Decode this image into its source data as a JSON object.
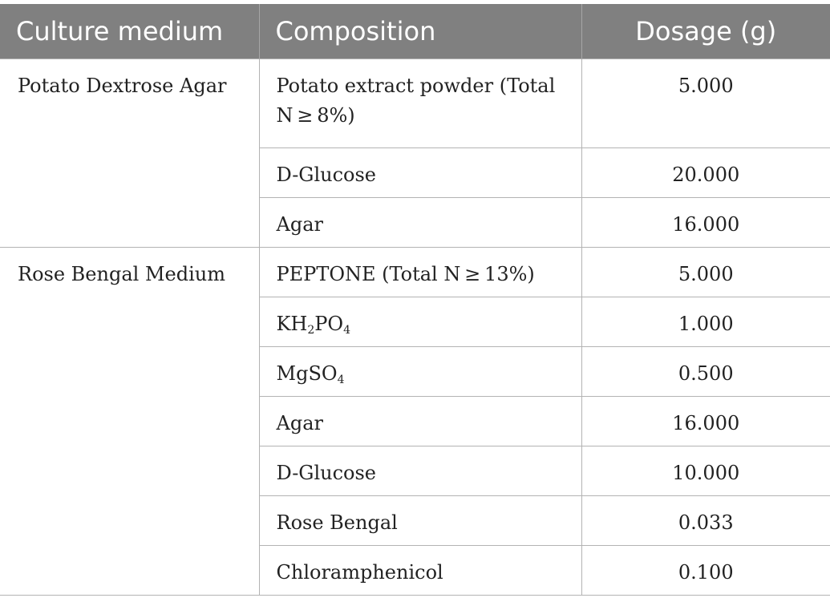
{
  "table": {
    "headers": {
      "medium": "Culture medium",
      "composition": "Composition",
      "dosage": "Dosage (g)"
    },
    "groups": [
      {
        "medium": "Potato Dextrose Agar",
        "rows": [
          {
            "composition": "Potato extract powder (Total N ≥ 8%)",
            "dosage": "5.000"
          },
          {
            "composition": "D-Glucose",
            "dosage": "20.000"
          },
          {
            "composition": "Agar",
            "dosage": "16.000"
          }
        ]
      },
      {
        "medium": "Rose Bengal Medium",
        "rows": [
          {
            "composition": "PEPTONE (Total N ≥ 13%)",
            "dosage": "5.000"
          },
          {
            "composition_parts": [
              "KH",
              "2",
              "PO",
              "4"
            ],
            "composition": "KH₂PO₄",
            "dosage": "1.000"
          },
          {
            "composition_parts": [
              "MgSO",
              "4"
            ],
            "composition": "MgSO₄",
            "dosage": "0.500"
          },
          {
            "composition": "Agar",
            "dosage": "16.000"
          },
          {
            "composition": "D-Glucose",
            "dosage": "10.000"
          },
          {
            "composition": "Rose Bengal",
            "dosage": "0.033"
          },
          {
            "composition": "Chloramphenicol",
            "dosage": "0.100"
          }
        ]
      }
    ]
  }
}
